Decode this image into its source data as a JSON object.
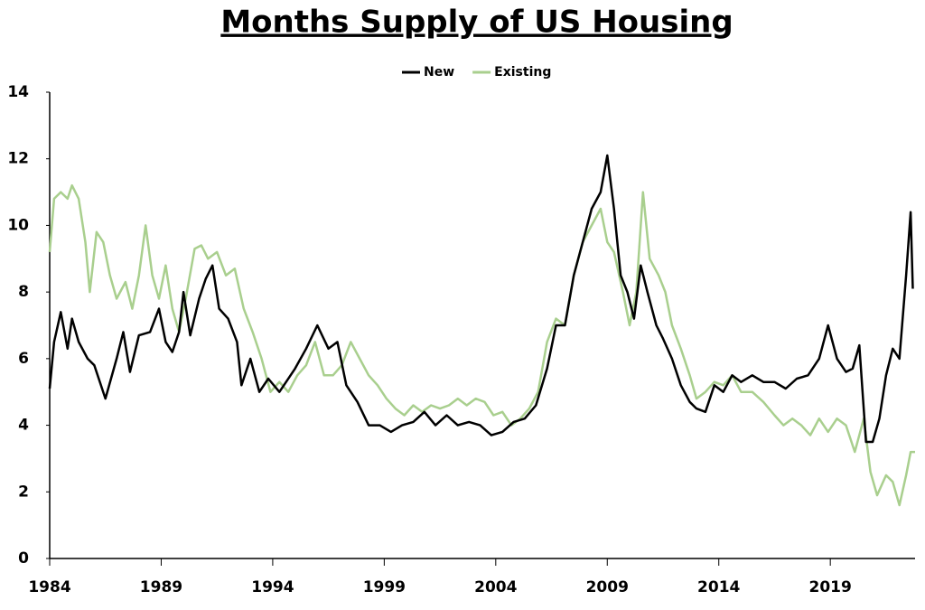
{
  "chart_data": {
    "type": "line",
    "title": "Months Supply of US Housing",
    "xlim": [
      1984,
      2022.8
    ],
    "xticks": [
      1984,
      1989,
      1994,
      1999,
      2004,
      2009,
      2014,
      2019
    ],
    "ylim": [
      0,
      14
    ],
    "yticks": [
      0,
      2,
      4,
      6,
      8,
      10,
      12,
      14
    ],
    "grid": false,
    "legend": "top",
    "series": [
      {
        "name": "New",
        "color": "#000000",
        "x": [
          1984.0,
          1984.2,
          1984.5,
          1984.8,
          1985.0,
          1985.3,
          1985.7,
          1986.0,
          1986.5,
          1987.0,
          1987.3,
          1987.6,
          1988.0,
          1988.5,
          1988.9,
          1989.2,
          1989.5,
          1989.8,
          1990.0,
          1990.3,
          1990.7,
          1991.0,
          1991.3,
          1991.6,
          1992.0,
          1992.4,
          1992.6,
          1993.0,
          1993.4,
          1993.8,
          1994.3,
          1994.6,
          1995.0,
          1995.5,
          1996.0,
          1996.5,
          1996.9,
          1997.3,
          1997.8,
          1998.3,
          1998.8,
          1999.3,
          1999.8,
          2000.3,
          2000.8,
          2001.3,
          2001.8,
          2002.3,
          2002.8,
          2003.3,
          2003.8,
          2004.3,
          2004.8,
          2005.3,
          2005.8,
          2006.3,
          2006.7,
          2007.1,
          2007.5,
          2007.9,
          2008.3,
          2008.7,
          2009.0,
          2009.3,
          2009.6,
          2009.9,
          2010.2,
          2010.5,
          2010.8,
          2011.2,
          2011.5,
          2011.9,
          2012.3,
          2012.7,
          2013.0,
          2013.4,
          2013.8,
          2014.2,
          2014.6,
          2015.0,
          2015.5,
          2016.0,
          2016.5,
          2017.0,
          2017.5,
          2018.0,
          2018.5,
          2018.9,
          2019.3,
          2019.7,
          2020.0,
          2020.3,
          2020.6,
          2020.9,
          2021.2,
          2021.5,
          2021.8,
          2022.1,
          2022.4,
          2022.6,
          2022.7
        ],
        "values": [
          5.1,
          6.5,
          7.4,
          6.3,
          7.2,
          6.5,
          6.0,
          5.8,
          4.8,
          6.0,
          6.8,
          5.6,
          6.7,
          6.8,
          7.5,
          6.5,
          6.2,
          6.8,
          8.0,
          6.7,
          7.8,
          8.4,
          8.8,
          7.5,
          7.2,
          6.5,
          5.2,
          6.0,
          5.0,
          5.4,
          5.0,
          5.3,
          5.7,
          6.3,
          7.0,
          6.3,
          6.5,
          5.2,
          4.7,
          4.0,
          4.0,
          3.8,
          4.0,
          4.1,
          4.4,
          4.0,
          4.3,
          4.0,
          4.1,
          4.0,
          3.7,
          3.8,
          4.1,
          4.2,
          4.6,
          5.7,
          7.0,
          7.0,
          8.5,
          9.5,
          10.5,
          11.0,
          12.1,
          10.5,
          8.5,
          8.0,
          7.2,
          8.8,
          8.0,
          7.0,
          6.6,
          6.0,
          5.2,
          4.7,
          4.5,
          4.4,
          5.2,
          5.0,
          5.5,
          5.3,
          5.5,
          5.3,
          5.3,
          5.1,
          5.4,
          5.5,
          6.0,
          7.0,
          6.0,
          5.6,
          5.7,
          6.4,
          3.5,
          3.5,
          4.2,
          5.5,
          6.3,
          6.0,
          8.5,
          10.4,
          8.1
        ]
      },
      {
        "name": "Existing",
        "color": "#a9cf8e",
        "x": [
          1984.0,
          1984.2,
          1984.5,
          1984.8,
          1985.0,
          1985.3,
          1985.6,
          1985.8,
          1986.1,
          1986.4,
          1986.7,
          1987.0,
          1987.4,
          1987.7,
          1988.0,
          1988.3,
          1988.6,
          1988.9,
          1989.2,
          1989.5,
          1989.8,
          1990.1,
          1990.5,
          1990.8,
          1991.1,
          1991.5,
          1991.9,
          1992.3,
          1992.7,
          1993.1,
          1993.5,
          1993.9,
          1994.3,
          1994.7,
          1995.1,
          1995.5,
          1995.9,
          1996.3,
          1996.7,
          1997.1,
          1997.5,
          1997.9,
          1998.3,
          1998.7,
          1999.1,
          1999.5,
          1999.9,
          2000.3,
          2000.7,
          2001.1,
          2001.5,
          2001.9,
          2002.3,
          2002.7,
          2003.1,
          2003.5,
          2003.9,
          2004.3,
          2004.7,
          2005.1,
          2005.5,
          2005.9,
          2006.3,
          2006.7,
          2007.1,
          2007.5,
          2007.9,
          2008.3,
          2008.7,
          2009.0,
          2009.3,
          2009.7,
          2010.0,
          2010.3,
          2010.6,
          2010.9,
          2011.3,
          2011.6,
          2011.9,
          2012.3,
          2012.7,
          2013.0,
          2013.4,
          2013.8,
          2014.2,
          2014.6,
          2015.0,
          2015.5,
          2016.0,
          2016.5,
          2016.9,
          2017.3,
          2017.7,
          2018.1,
          2018.5,
          2018.9,
          2019.3,
          2019.7,
          2020.1,
          2020.5,
          2020.8,
          2021.1,
          2021.5,
          2021.8,
          2022.1,
          2022.4,
          2022.6,
          2022.8
        ],
        "values": [
          9.2,
          10.8,
          11.0,
          10.8,
          11.2,
          10.8,
          9.5,
          8.0,
          9.8,
          9.5,
          8.5,
          7.8,
          8.3,
          7.5,
          8.5,
          10.0,
          8.5,
          7.8,
          8.8,
          7.5,
          6.8,
          7.8,
          9.3,
          9.4,
          9.0,
          9.2,
          8.5,
          8.7,
          7.5,
          6.8,
          6.0,
          5.0,
          5.3,
          5.0,
          5.5,
          5.8,
          6.5,
          5.5,
          5.5,
          5.8,
          6.5,
          6.0,
          5.5,
          5.2,
          4.8,
          4.5,
          4.3,
          4.6,
          4.4,
          4.6,
          4.5,
          4.6,
          4.8,
          4.6,
          4.8,
          4.7,
          4.3,
          4.4,
          4.0,
          4.2,
          4.5,
          5.0,
          6.5,
          7.2,
          7.0,
          8.5,
          9.5,
          10.0,
          10.5,
          9.5,
          9.2,
          8.0,
          7.0,
          8.0,
          11.0,
          9.0,
          8.5,
          8.0,
          7.0,
          6.3,
          5.5,
          4.8,
          5.0,
          5.3,
          5.2,
          5.5,
          5.0,
          5.0,
          4.7,
          4.3,
          4.0,
          4.2,
          4.0,
          3.7,
          4.2,
          3.8,
          4.2,
          4.0,
          3.2,
          4.2,
          2.6,
          1.9,
          2.5,
          2.3,
          1.6,
          2.5,
          3.2,
          3.2
        ]
      }
    ]
  }
}
